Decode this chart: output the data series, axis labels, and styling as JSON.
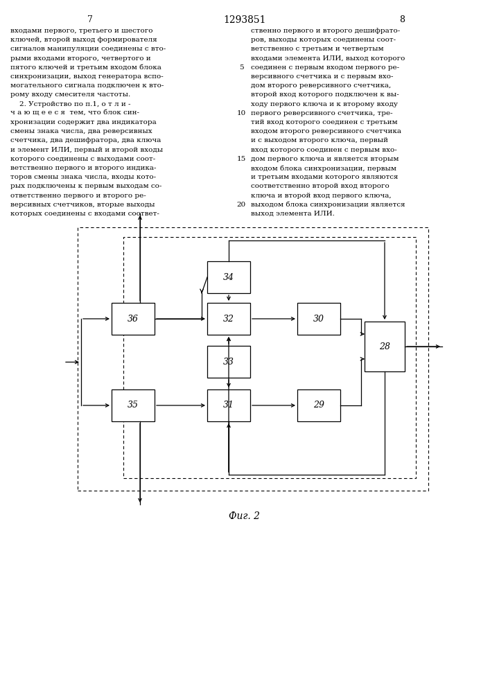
{
  "page_number_left": "7",
  "page_number_center": "1293851",
  "page_number_right": "8",
  "text_left": [
    "входами первого, третьего и шестого",
    "ключей, второй выход формирователя",
    "сигналов манипуляции соединены с вто-",
    "рыми входами второго, четвертого и",
    "пятого ключей и третьим входом блока",
    "синхронизации, выход генератора вспо-",
    "могательного сигнала подключен к вто-",
    "рому входу смесителя частоты.",
    "    2. Устройство по п.1, о т л и -",
    "ч а ю щ е е с я  тем, что блок син-",
    "хронизации содержит два индикатора",
    "смены знака числа, два реверсивных",
    "счетчика, два дешифратора, два ключа",
    "и элемент ИЛИ, первый и второй входы",
    "которого соединены с выходами соот-",
    "ветственно первого и второго индика-",
    "торов смены знака числа, входы кото-",
    "рых подключены к первым выходам со-",
    "ответственно первого и второго ре-",
    "версивных счетчиков, вторые выходы",
    "которых соединены с входами соответ-"
  ],
  "text_right": [
    "ственно первого и второго дешифрато-",
    "ров, выходы которых соединены соот-",
    "ветственно с третьим и четвертым",
    "входами элемента ИЛИ, выход которого",
    "соединен с первым входом первого ре-",
    "версивного счетчика и с первым вхо-",
    "дом второго реверсивного счетчика,",
    "второй вход которого подключен к вы-",
    "ходу первого ключа и к второму входу",
    "первого реверсивного счетчика, тре-",
    "тий вход которого соединен с третьим",
    "входом второго реверсивного счетчика",
    "и с выходом второго ключа, первый",
    "вход которого соединен с первым вхо-",
    "дом первого ключа и является вторым",
    "входом блока синхронизации, первым",
    "и третьим входами которого являются",
    "соответственно второй вход второго",
    "ключа и второй вход первого ключа,",
    "выходом блока синхронизации является",
    "выход элемента ИЛИ."
  ],
  "line_numbers": [
    "5",
    "10",
    "15",
    "20"
  ],
  "line_number_rows": [
    4,
    9,
    14,
    19
  ],
  "fig_label": "Фиг. 2",
  "background_color": "#ffffff",
  "text_color": "#000000",
  "fontsize_body": 7.5,
  "fontsize_pagenum": 9.0,
  "fontsize_fig": 10.0,
  "fontsize_block": 9.0
}
